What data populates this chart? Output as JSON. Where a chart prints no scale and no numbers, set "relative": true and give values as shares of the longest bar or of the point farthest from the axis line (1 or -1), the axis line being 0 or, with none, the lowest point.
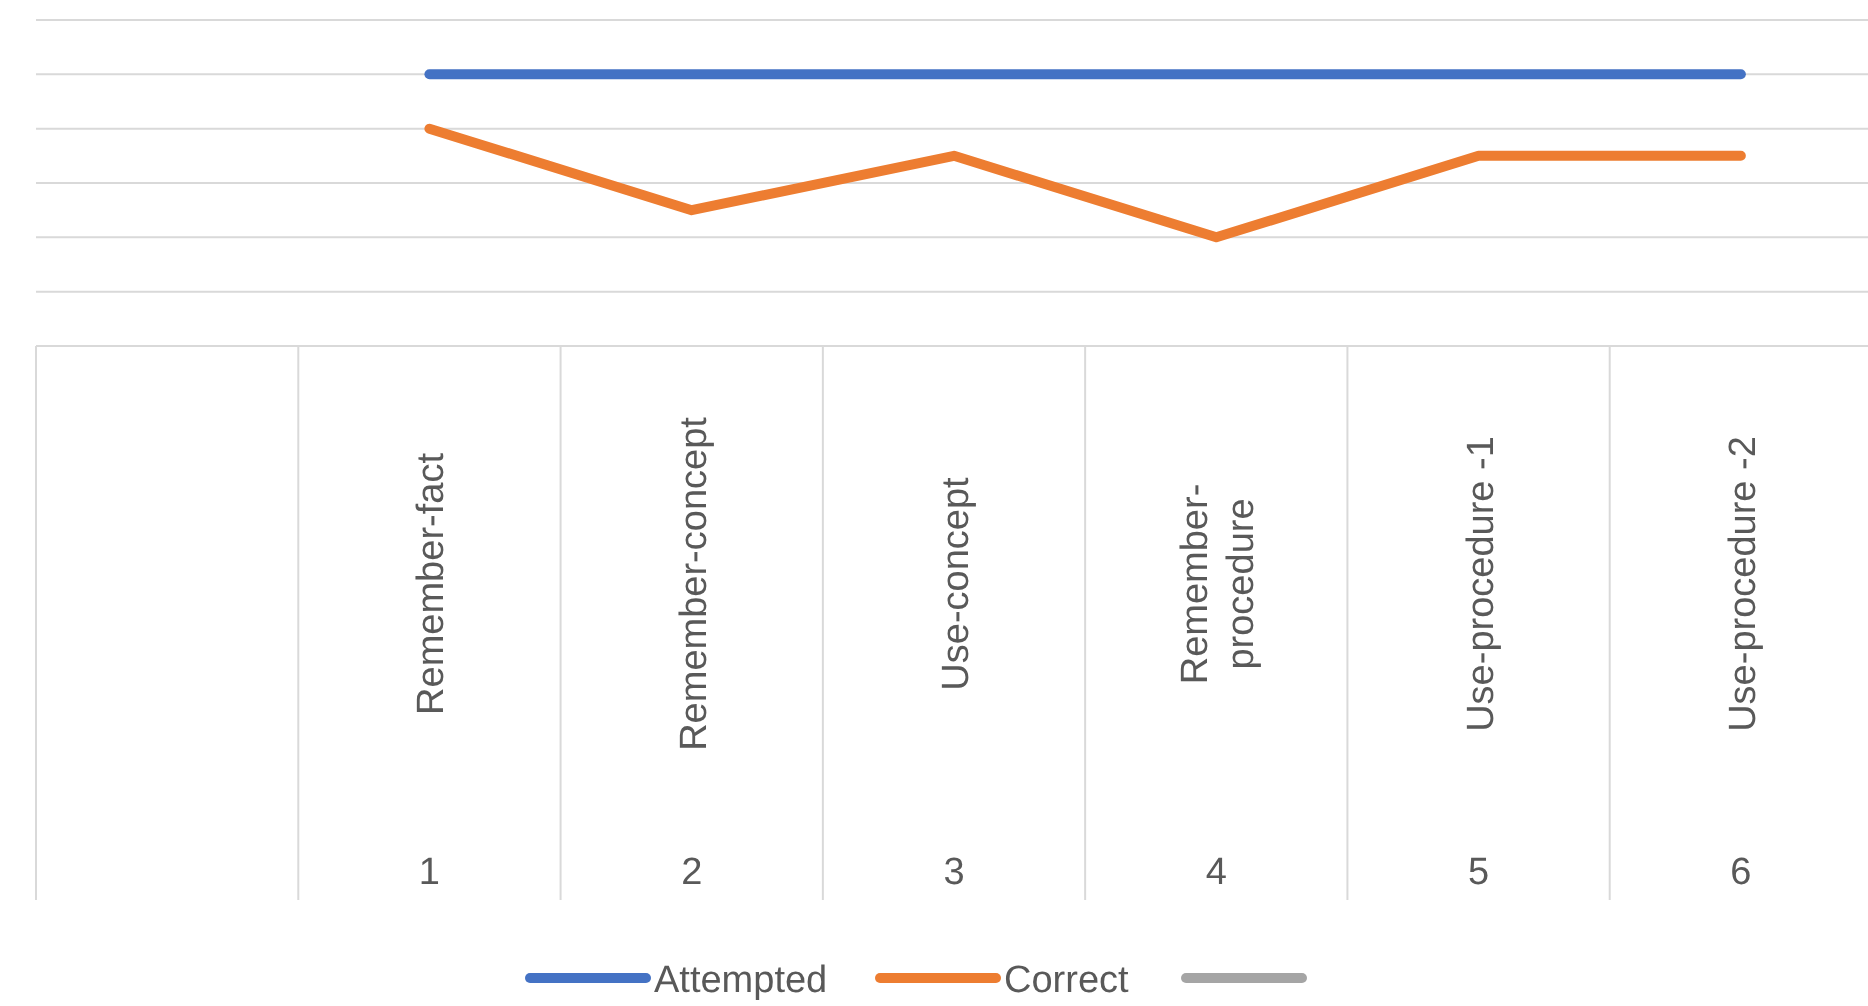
{
  "chart_data": {
    "type": "line",
    "relative": true,
    "grid": "y",
    "legend": "bottom",
    "categories": [
      null,
      "Remember-fact",
      "Remember-concept",
      "Use-concept",
      "Remember-\nprocedure",
      "Use-procedure -1",
      "Use-procedure -2"
    ],
    "series": [
      {
        "name": "Attempted",
        "color": "#4472c4",
        "values": [
          null,
          1,
          1,
          1,
          1,
          1,
          1
        ]
      },
      {
        "name": "Correct",
        "color": "#ed7d31",
        "values": [
          null,
          0.8,
          0.5,
          0.7,
          0.4,
          0.7,
          0.7
        ]
      },
      {
        "color": "#a5a5a5",
        "values": [
          null,
          null,
          null,
          null,
          null,
          null,
          null
        ]
      }
    ],
    "annotations": [
      "1",
      "2",
      "3",
      "4",
      "5",
      "6"
    ]
  }
}
